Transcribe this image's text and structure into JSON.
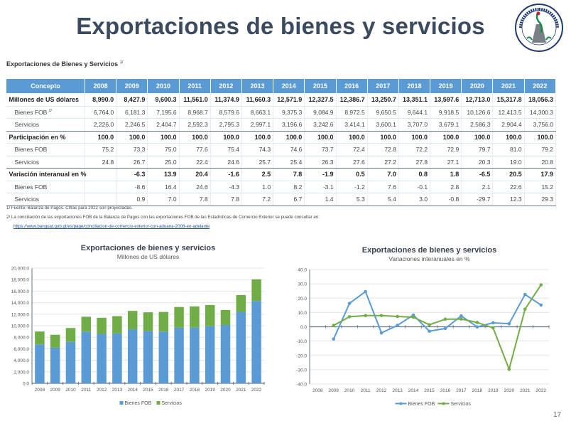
{
  "page": {
    "title": "Exportaciones de bienes y servicios",
    "page_number": "17",
    "logo_text": "BANCO DE GUATEMALA"
  },
  "table": {
    "caption": "Exportaciones de Bienes y Servicios",
    "caption_note": "1/",
    "headers": [
      "Concepto",
      "2008",
      "2009",
      "2010",
      "2011",
      "2012",
      "2013",
      "2014",
      "2015",
      "2016",
      "2017",
      "2018",
      "2019",
      "2020",
      "2021",
      "2022"
    ],
    "rows": [
      {
        "label": "Millones de US dólares",
        "note": "",
        "type": "main",
        "values": [
          "8,990.0",
          "8,427.9",
          "9,600.3",
          "11,561.0",
          "11,374.9",
          "11,660.3",
          "12,571.9",
          "12,327.5",
          "12,386.7",
          "13,250.7",
          "13,351.1",
          "13,597.6",
          "12,713.0",
          "15,317.8",
          "18,056.3"
        ]
      },
      {
        "label": "Bienes FOB",
        "note": "2/",
        "type": "sub",
        "values": [
          "6,764.0",
          "6,181.3",
          "7,195.6",
          "8,968.7",
          "8,579.6",
          "8,663.1",
          "9,375.3",
          "9,084.9",
          "8,972.5",
          "9,650.5",
          "9,644.1",
          "9,918.5",
          "10,126.6",
          "12,413.5",
          "14,300.3"
        ]
      },
      {
        "label": "Servicios",
        "note": "",
        "type": "sub sep",
        "values": [
          "2,226.0",
          "2,246.5",
          "2,404.7",
          "2,592.3",
          "2,795.3",
          "2,997.1",
          "3,196.6",
          "3,242.6",
          "3,414.1",
          "3,600.1",
          "3,707.0",
          "3,679.1",
          "2,586.3",
          "2,904.4",
          "3,756.0"
        ]
      },
      {
        "label": "Participación en %",
        "note": "",
        "type": "main",
        "values": [
          "100.0",
          "100.0",
          "100.0",
          "100.0",
          "100.0",
          "100.0",
          "100.0",
          "100.0",
          "100.0",
          "100.0",
          "100.0",
          "100.0",
          "100.0",
          "100.0",
          "100.0"
        ]
      },
      {
        "label": "Bienes FOB",
        "note": "",
        "type": "sub",
        "values": [
          "75.2",
          "73.3",
          "75.0",
          "77.6",
          "75.4",
          "74.3",
          "74.6",
          "73.7",
          "72.4",
          "72.8",
          "72.2",
          "72.9",
          "79.7",
          "81.0",
          "79.2"
        ]
      },
      {
        "label": "Servicios",
        "note": "",
        "type": "sub sep",
        "values": [
          "24.8",
          "26.7",
          "25.0",
          "22.4",
          "24.6",
          "25.7",
          "25.4",
          "26.3",
          "27.6",
          "27.2",
          "27.8",
          "27.1",
          "20.3",
          "19.0",
          "20.8"
        ]
      },
      {
        "label": "Variación interanual en %",
        "note": "",
        "type": "main",
        "values": [
          "",
          "-6.3",
          "13.9",
          "20.4",
          "-1.6",
          "2.5",
          "7.8",
          "-1.9",
          "0.5",
          "7.0",
          "0.8",
          "1.8",
          "-6.5",
          "20.5",
          "17.9"
        ]
      },
      {
        "label": "Bienes FOB",
        "note": "",
        "type": "sub",
        "values": [
          "",
          "-8.6",
          "16.4",
          "24.6",
          "-4.3",
          "1.0",
          "8.2",
          "-3.1",
          "-1.2",
          "7.6",
          "-0.1",
          "2.8",
          "2.1",
          "22.6",
          "15.2"
        ]
      },
      {
        "label": "Servicios",
        "note": "",
        "type": "sub sep",
        "values": [
          "",
          "0.9",
          "7.0",
          "7.8",
          "7.8",
          "7.2",
          "6.7",
          "1.4",
          "5.3",
          "5.4",
          "3.0",
          "-0.8",
          "-29.7",
          "12.3",
          "29.3"
        ]
      }
    ],
    "notes": [
      "1/ Fuente: Balanza de Pagos. Cifras para 2022 son proyectadas.",
      "2/ La conciliación de las exportaciones FOB de la Balanza de Pagos con las exportaciones FOB de las Estadísticas de Comercio Exterior se puede consultar en:"
    ],
    "link": "https://www.banguat.gob.gt/es/page/conciliacion-de-comercio-exterior-con-aduana-2008-en-adelante"
  },
  "chart_data": [
    {
      "type": "bar",
      "stacked": true,
      "title": "Exportaciones de bienes y servicios",
      "subtitle": "Millones de US dólares",
      "categories": [
        "2008",
        "2009",
        "2010",
        "2011",
        "2012",
        "2013",
        "2014",
        "2015",
        "2016",
        "2017",
        "2018",
        "2019",
        "2020",
        "2021",
        "2022"
      ],
      "series": [
        {
          "name": "Bienes FOB",
          "color": "#5b9bd5",
          "values": [
            6764.0,
            6181.3,
            7195.6,
            8968.7,
            8579.6,
            8663.1,
            9375.3,
            9084.9,
            8972.5,
            9650.5,
            9644.1,
            9918.5,
            10126.6,
            12413.5,
            14300.3
          ]
        },
        {
          "name": "Servicios",
          "color": "#70ad47",
          "values": [
            2226.0,
            2246.5,
            2404.7,
            2592.3,
            2795.3,
            2997.1,
            3196.6,
            3242.6,
            3414.1,
            3600.1,
            3707.0,
            3679.1,
            2586.3,
            2904.4,
            3756.0
          ]
        }
      ],
      "ylim": [
        0,
        20000
      ],
      "yticks": [
        "0.0",
        "2,000.0",
        "4,000.0",
        "6,000.0",
        "8,000.0",
        "10,000.0",
        "12,000.0",
        "14,000.0",
        "16,000.0",
        "18,000.0",
        "20,000.0"
      ],
      "grid": true,
      "legend": "bottom"
    },
    {
      "type": "line",
      "title": "Exportaciones de bienes y servicios",
      "subtitle": "Variaciones interanuales en %",
      "categories": [
        "2008",
        "2009",
        "2010",
        "2011",
        "2012",
        "2013",
        "2014",
        "2015",
        "2016",
        "2017",
        "2018",
        "2019",
        "2020",
        "2021",
        "2022"
      ],
      "series": [
        {
          "name": "Bienes FOB",
          "color": "#5b9bd5",
          "values": [
            null,
            -8.6,
            16.4,
            24.6,
            -4.3,
            1.0,
            8.2,
            -3.1,
            -1.2,
            7.6,
            -0.1,
            2.8,
            2.1,
            22.6,
            15.2
          ]
        },
        {
          "name": "Servicios",
          "color": "#70ad47",
          "values": [
            null,
            0.9,
            7.0,
            7.8,
            7.8,
            7.2,
            6.7,
            1.4,
            5.3,
            5.4,
            3.0,
            -0.8,
            -29.7,
            12.3,
            29.3
          ]
        }
      ],
      "ylim": [
        -40,
        40
      ],
      "yticks": [
        "-40.0",
        "-30.0",
        "-20.0",
        "-10.0",
        "0.0",
        "10.0",
        "20.0",
        "30.0",
        "40.0"
      ],
      "grid": true,
      "legend": "bottom"
    }
  ]
}
